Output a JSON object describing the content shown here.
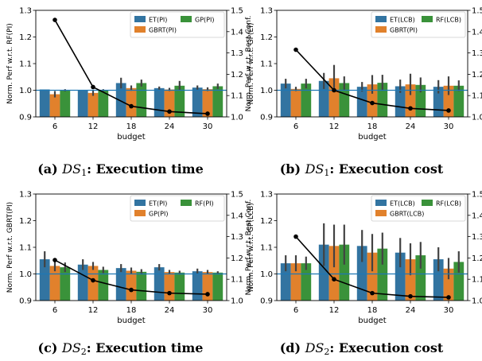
{
  "colors": {
    "series": [
      "#3274a1",
      "#e1812c",
      "#3a923a"
    ],
    "baseline": "#1f77b4",
    "line": "#000000",
    "errorbar": "#424242"
  },
  "chart_data": [
    {
      "type": "bar",
      "caption": {
        "label": "(a)",
        "symbol": "DS",
        "subscript": "1",
        "text": ": Execution time"
      },
      "xlabel": "budget",
      "ylabel": "Norm. Perf w.r.t. RF(PI)",
      "y2label": "Norm. Perf w.r.t. Best Conf.",
      "categories": [
        "6",
        "12",
        "18",
        "24",
        "30"
      ],
      "ylim": [
        0.9,
        1.3
      ],
      "yticks": [
        "0.9",
        "1.0",
        "1.1",
        "1.2",
        "1.3"
      ],
      "y2lim": [
        1.0,
        1.5
      ],
      "y2ticks": [
        "1.0",
        "1.1",
        "1.2",
        "1.3",
        "1.4",
        "1.5"
      ],
      "baseline": 1.0,
      "legend_position": "top",
      "series": [
        {
          "name": "ET(PI)",
          "values": [
            1.003,
            1.001,
            1.027,
            1.008,
            1.01
          ],
          "err": [
            0.0,
            0.0,
            0.02,
            0.006,
            0.008
          ]
        },
        {
          "name": "GBRT(PI)",
          "values": [
            0.985,
            0.99,
            1.008,
            1.003,
            1.004
          ],
          "err": [
            0.012,
            0.011,
            0.01,
            0.006,
            0.007
          ]
        },
        {
          "name": "GP(PI)",
          "values": [
            1.0,
            1.0,
            1.027,
            1.017,
            1.015
          ],
          "err": [
            0.004,
            0.004,
            0.013,
            0.018,
            0.01
          ]
        }
      ],
      "line": {
        "values": [
          1.455,
          1.14,
          1.05,
          1.025,
          1.015
        ]
      }
    },
    {
      "type": "bar",
      "caption": {
        "label": "(b)",
        "symbol": "DS",
        "subscript": "1",
        "text": ": Execution cost"
      },
      "xlabel": "budget",
      "ylabel": "Norm. Perf w.r.t. GP(EI)",
      "y2label": "Norm. Perf w.r.t. Best Conf.",
      "categories": [
        "6",
        "12",
        "18",
        "24",
        "30"
      ],
      "ylim": [
        0.9,
        1.3
      ],
      "yticks": [
        "0.9",
        "1.0",
        "1.1",
        "1.2",
        "1.3"
      ],
      "y2lim": [
        1.0,
        1.5
      ],
      "y2ticks": [
        "1.0",
        "1.1",
        "1.2",
        "1.3",
        "1.4",
        "1.5"
      ],
      "baseline": 1.0,
      "legend_position": "top",
      "series": [
        {
          "name": "ET(LCB)",
          "values": [
            1.025,
            1.035,
            1.013,
            1.015,
            1.013
          ],
          "err": [
            0.018,
            0.03,
            0.018,
            0.025,
            0.025
          ]
        },
        {
          "name": "GBRT(PI)",
          "values": [
            1.005,
            1.045,
            1.022,
            1.022,
            1.017
          ],
          "err": [
            0.008,
            0.05,
            0.035,
            0.04,
            0.035
          ]
        },
        {
          "name": "RF(LCB)",
          "values": [
            1.025,
            1.027,
            1.028,
            1.02,
            1.017
          ],
          "err": [
            0.018,
            0.025,
            0.03,
            0.028,
            0.02
          ]
        }
      ],
      "line": {
        "values": [
          1.315,
          1.125,
          1.065,
          1.04,
          1.03
        ]
      }
    },
    {
      "type": "bar",
      "caption": {
        "label": "(c)",
        "symbol": "DS",
        "subscript": "2",
        "text": ": Execution time"
      },
      "xlabel": "budget",
      "ylabel": "Norm. Perf w.r.t. GBRT(PI)",
      "y2label": "Norm. Perf w.r.t. Best Conf.",
      "categories": [
        "6",
        "12",
        "18",
        "24",
        "30"
      ],
      "ylim": [
        0.9,
        1.3
      ],
      "yticks": [
        "0.9",
        "1.0",
        "1.1",
        "1.2",
        "1.3"
      ],
      "y2lim": [
        1.0,
        1.5
      ],
      "y2ticks": [
        "1.0",
        "1.1",
        "1.2",
        "1.3",
        "1.4",
        "1.5"
      ],
      "baseline": 1.0,
      "legend_position": "top",
      "series": [
        {
          "name": "ET(PI)",
          "values": [
            1.055,
            1.035,
            1.022,
            1.025,
            1.01
          ],
          "err": [
            0.03,
            0.02,
            0.015,
            0.012,
            0.01
          ]
        },
        {
          "name": "GP(PI)",
          "values": [
            1.03,
            1.03,
            1.012,
            1.007,
            1.007
          ],
          "err": [
            0.02,
            0.015,
            0.012,
            0.008,
            0.008
          ]
        },
        {
          "name": "RF(PI)",
          "values": [
            1.025,
            1.015,
            1.008,
            1.005,
            1.005
          ],
          "err": [
            0.018,
            0.012,
            0.01,
            0.007,
            0.005
          ]
        }
      ],
      "line": {
        "values": [
          1.19,
          1.095,
          1.05,
          1.035,
          1.03
        ]
      }
    },
    {
      "type": "bar",
      "caption": {
        "label": "(d)",
        "symbol": "DS",
        "subscript": "2",
        "text": ": Execution cost"
      },
      "xlabel": "budget",
      "ylabel": "Norm. Perf w.r.t. GP(LCB)",
      "y2label": "Norm. Perf w.r.t. Best Conf.",
      "categories": [
        "6",
        "12",
        "18",
        "24",
        "30"
      ],
      "ylim": [
        0.9,
        1.3
      ],
      "yticks": [
        "0.9",
        "1.0",
        "1.1",
        "1.2",
        "1.3"
      ],
      "y2lim": [
        1.0,
        1.5
      ],
      "y2ticks": [
        "1.0",
        "1.1",
        "1.2",
        "1.3",
        "1.4",
        "1.5"
      ],
      "baseline": 1.0,
      "legend_position": "top",
      "series": [
        {
          "name": "ET(LCB)",
          "values": [
            1.04,
            1.11,
            1.105,
            1.08,
            1.055
          ],
          "err": [
            0.03,
            0.08,
            0.06,
            0.055,
            0.045
          ]
        },
        {
          "name": "GBRT(LCB)",
          "values": [
            1.04,
            1.105,
            1.08,
            1.055,
            1.02
          ],
          "err": [
            0.03,
            0.08,
            0.07,
            0.06,
            0.04
          ]
        },
        {
          "name": "RF(LCB)",
          "values": [
            1.04,
            1.11,
            1.095,
            1.07,
            1.045
          ],
          "err": [
            0.025,
            0.075,
            0.06,
            0.05,
            0.04
          ]
        }
      ],
      "line": {
        "values": [
          1.3,
          1.1,
          1.035,
          1.02,
          1.015
        ]
      }
    }
  ]
}
